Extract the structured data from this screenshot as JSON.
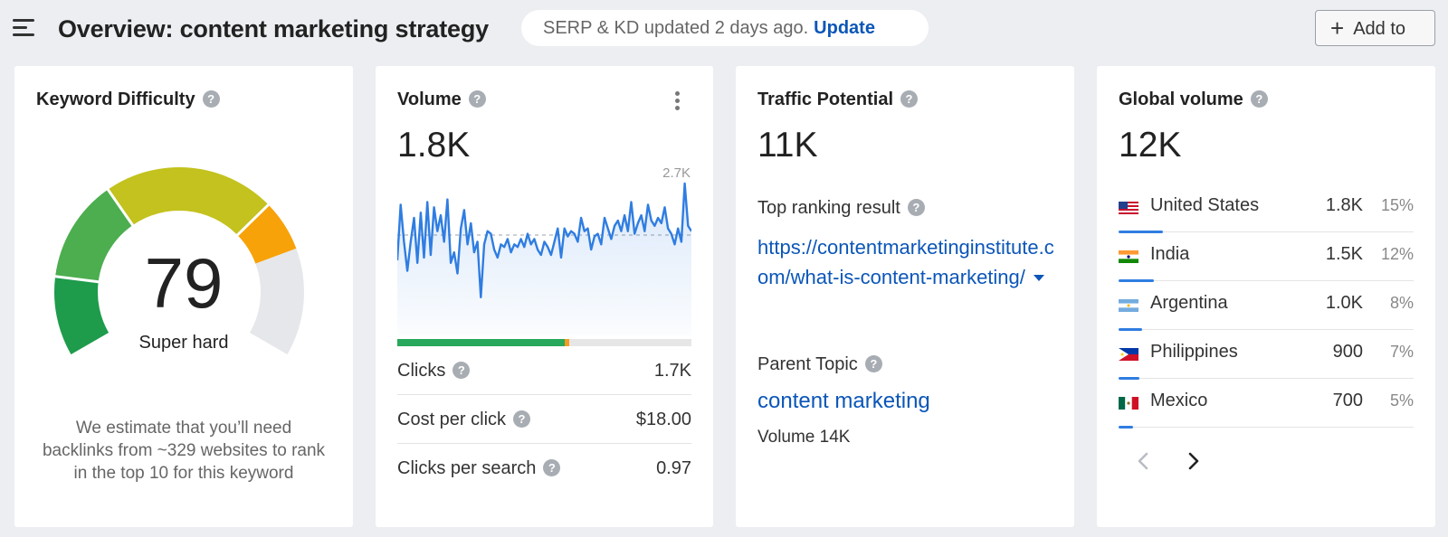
{
  "header": {
    "title": "Overview: content marketing strategy",
    "serp_text": "SERP & KD updated 2 days ago.",
    "update_label": "Update",
    "add_label": "Add to"
  },
  "kd": {
    "title": "Keyword Difficulty",
    "help": "?",
    "value": "79",
    "value_fraction": 0.79,
    "label": "Super hard",
    "note": "We estimate that you’ll need backlinks from ~329 websites to rank in the top 10 for this keyword"
  },
  "volume": {
    "title": "Volume",
    "help": "?",
    "value": "1.8K",
    "max_label": "2.7K",
    "clicks_split": {
      "organic_fraction": 0.57,
      "paid_fraction": 0.015
    },
    "metrics": [
      {
        "label": "Clicks",
        "value": "1.7K"
      },
      {
        "label": "Cost per click",
        "value": "$18.00"
      },
      {
        "label": "Clicks per search",
        "value": "0.97"
      }
    ]
  },
  "traffic": {
    "title": "Traffic Potential",
    "help": "?",
    "value": "11K",
    "top_label": "Top ranking result",
    "top_url": "https://contentmarketinginstitute.com/what-is-content-marketing/",
    "parent_label": "Parent Topic",
    "parent_topic": "content marketing",
    "parent_volume": "Volume 14K"
  },
  "global": {
    "title": "Global volume",
    "help": "?",
    "value": "12K",
    "countries": [
      {
        "name": "United States",
        "volume": "1.8K",
        "pct": "15%",
        "share": 0.15,
        "flag": "us-flag"
      },
      {
        "name": "India",
        "volume": "1.5K",
        "pct": "12%",
        "share": 0.12,
        "flag": "india-flag"
      },
      {
        "name": "Argentina",
        "volume": "1.0K",
        "pct": "8%",
        "share": 0.08,
        "flag": "argentina-flag"
      },
      {
        "name": "Philippines",
        "volume": "900",
        "pct": "7%",
        "share": 0.07,
        "flag": "philippines-flag"
      },
      {
        "name": "Mexico",
        "volume": "700",
        "pct": "5%",
        "share": 0.05,
        "flag": "mexico-flag"
      }
    ]
  },
  "colors": {
    "link": "#0b56b8",
    "sparkline": "#2f7de1",
    "organic": "#27a85a",
    "paid": "#f59b23"
  },
  "chart_data": {
    "type": "line",
    "ylim": [
      0,
      2700
    ],
    "values": [
      1250,
      2300,
      1600,
      1050,
      1600,
      2050,
      1200,
      2150,
      1300,
      2350,
      1350,
      2250,
      1800,
      2100,
      1600,
      2400,
      1200,
      1400,
      1000,
      1850,
      2200,
      1550,
      1950,
      1400,
      1600,
      550,
      1550,
      1800,
      1750,
      1450,
      1300,
      1550,
      1500,
      1650,
      1400,
      1550,
      1500,
      1650,
      1500,
      1750,
      1550,
      1650,
      1450,
      1350,
      1600,
      1500,
      1350,
      1600,
      1850,
      1300,
      1850,
      1700,
      1800,
      1750,
      1600,
      2050,
      1800,
      1850,
      1450,
      1700,
      1750,
      1550,
      2050,
      1850,
      1650,
      1900,
      2000,
      1800,
      2100,
      1800,
      2350,
      1750,
      1950,
      2100,
      1800,
      2300,
      2000,
      1900,
      2050,
      1950,
      2250,
      1850,
      1750,
      1550,
      1850,
      1600,
      2700,
      1900,
      1800
    ]
  }
}
